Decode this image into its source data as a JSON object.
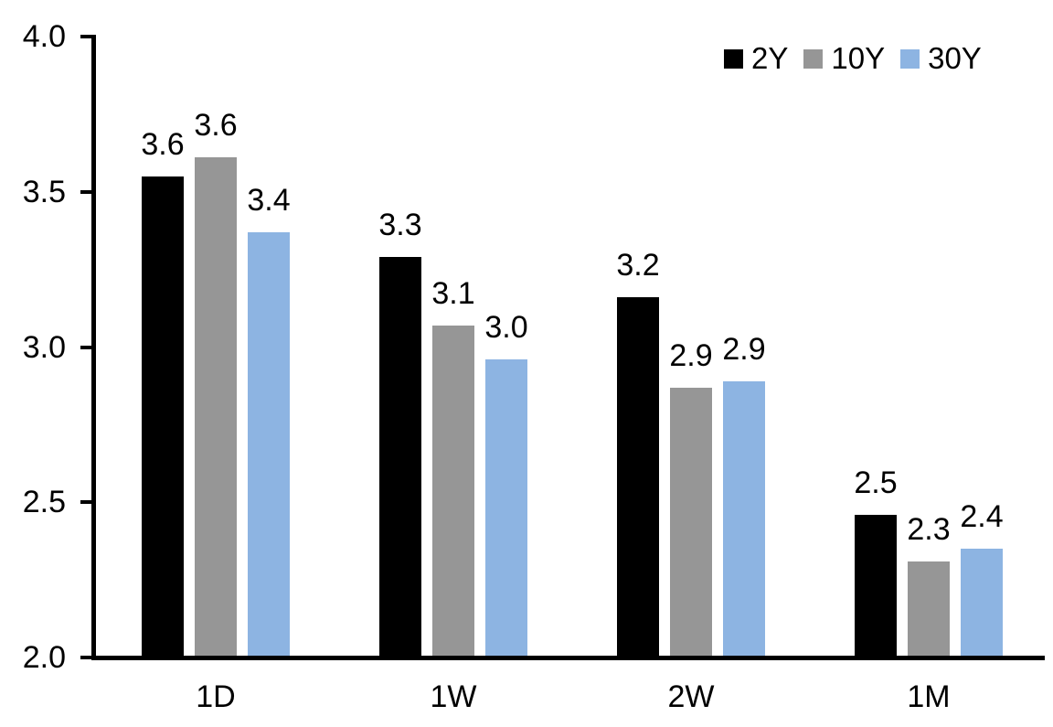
{
  "chart_data": {
    "type": "bar",
    "categories": [
      "1D",
      "1W",
      "2W",
      "1M"
    ],
    "series": [
      {
        "name": "2Y",
        "color": "#000000",
        "values": [
          3.55,
          3.29,
          3.16,
          2.46
        ],
        "labels": [
          "3.6",
          "3.3",
          "3.2",
          "2.5"
        ]
      },
      {
        "name": "10Y",
        "color": "#969696",
        "values": [
          3.61,
          3.07,
          2.87,
          2.31
        ],
        "labels": [
          "3.6",
          "3.1",
          "2.9",
          "2.3"
        ]
      },
      {
        "name": "30Y",
        "color": "#8DB4E2",
        "values": [
          3.37,
          2.96,
          2.89,
          2.35
        ],
        "labels": [
          "3.4",
          "3.0",
          "2.9",
          "2.4"
        ]
      }
    ],
    "title": "",
    "xlabel": "",
    "ylabel": "",
    "ylim": [
      2.0,
      4.0
    ],
    "y_ticks": [
      "4.0",
      "3.5",
      "3.0",
      "2.5",
      "2.0"
    ],
    "y_tick_values": [
      4.0,
      3.5,
      3.0,
      2.5,
      2.0
    ],
    "grid": false,
    "legend_position": "top-right",
    "axis_color": "#000000",
    "background_color": "#FFFFFF"
  }
}
